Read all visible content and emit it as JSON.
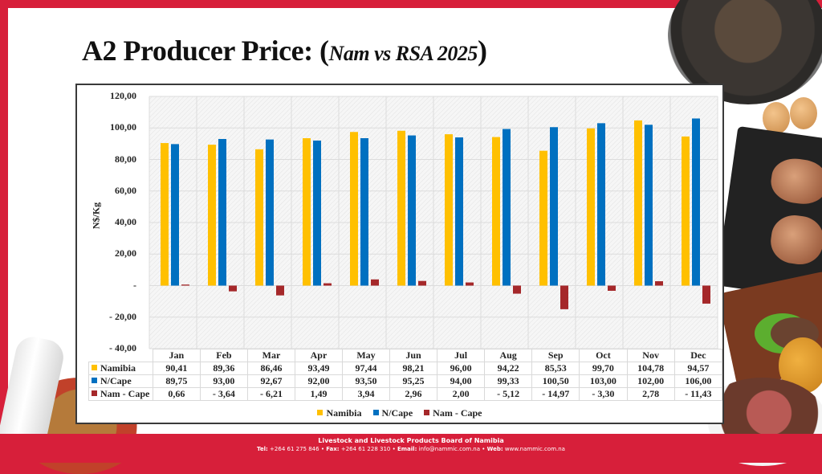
{
  "slide": {
    "title_main": "A2 Producer Price: (",
    "title_sub": "Nam vs RSA 2025",
    "title_close": ")"
  },
  "footer": {
    "org": "Livestock and Livestock Products Board of Namibia",
    "tel_label": "Tel:",
    "tel": "+264 61 275 846",
    "fax_label": "Fax:",
    "fax": "+264 61 228 310",
    "email_label": "Email:",
    "email": "info@nammic.com.na",
    "web_label": "Web:",
    "web": "www.nammic.com.na",
    "separator": "•"
  },
  "colors": {
    "namibia": "#ffc000",
    "ncape": "#0070c0",
    "diff": "#a5282a",
    "brand_red": "#d71f3a"
  },
  "chart_data": {
    "type": "bar",
    "title": "A2 Producer Price: (Nam vs RSA 2025)",
    "xlabel": "",
    "ylabel": "N$/Kg",
    "ylim": [
      -40,
      120
    ],
    "yticks": [
      {
        "value": 120,
        "label": "120,00"
      },
      {
        "value": 100,
        "label": "100,00"
      },
      {
        "value": 80,
        "label": "80,00"
      },
      {
        "value": 60,
        "label": "60,00"
      },
      {
        "value": 40,
        "label": "40,00"
      },
      {
        "value": 20,
        "label": "20,00"
      },
      {
        "value": 0,
        "label": "-"
      },
      {
        "value": -20,
        "label": "- 20,00"
      },
      {
        "value": -40,
        "label": "- 40,00"
      }
    ],
    "grid": true,
    "legend_position": "bottom",
    "categories": [
      "Jan",
      "Feb",
      "Mar",
      "Apr",
      "May",
      "Jun",
      "Jul",
      "Aug",
      "Sep",
      "Oct",
      "Nov",
      "Dec"
    ],
    "series": [
      {
        "name": "Namibia",
        "color_key": "namibia",
        "values": [
          90.41,
          89.36,
          86.46,
          93.49,
          97.44,
          98.21,
          96.0,
          94.22,
          85.53,
          99.7,
          104.78,
          94.57
        ],
        "labels": [
          "90,41",
          "89,36",
          "86,46",
          "93,49",
          "97,44",
          "98,21",
          "96,00",
          "94,22",
          "85,53",
          "99,70",
          "104,78",
          "94,57"
        ]
      },
      {
        "name": "N/Cape",
        "color_key": "ncape",
        "values": [
          89.75,
          93.0,
          92.67,
          92.0,
          93.5,
          95.25,
          94.0,
          99.33,
          100.5,
          103.0,
          102.0,
          106.0
        ],
        "labels": [
          "89,75",
          "93,00",
          "92,67",
          "92,00",
          "93,50",
          "95,25",
          "94,00",
          "99,33",
          "100,50",
          "103,00",
          "102,00",
          "106,00"
        ]
      },
      {
        "name": "Nam - Cape",
        "color_key": "diff",
        "values": [
          0.66,
          -3.64,
          -6.21,
          1.49,
          3.94,
          2.96,
          2.0,
          -5.12,
          -14.97,
          -3.3,
          2.78,
          -11.43
        ],
        "labels": [
          "0,66",
          "- 3,64",
          "- 6,21",
          "1,49",
          "3,94",
          "2,96",
          "2,00",
          "- 5,12",
          "- 14,97",
          "- 3,30",
          "2,78",
          "- 11,43"
        ]
      }
    ]
  }
}
